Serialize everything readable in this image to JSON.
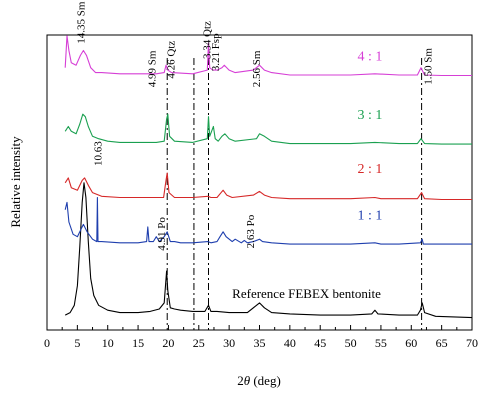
{
  "chart_data": {
    "type": "line",
    "xlabel": "2θ (deg)",
    "ylabel": "Relative intensity",
    "xlim": [
      0,
      70
    ],
    "xticks": [
      "0",
      "5",
      "10",
      "15",
      "20",
      "25",
      "30",
      "35",
      "40",
      "45",
      "50",
      "55",
      "60",
      "65",
      "70"
    ],
    "reference_lines_x": [
      19.8,
      24.2,
      26.6,
      61.7
    ],
    "series": [
      {
        "name": "Reference FEBEX bentonite",
        "color": "#000000",
        "offset": 0,
        "points": [
          [
            3.0,
            0.02
          ],
          [
            3.8,
            0.03
          ],
          [
            4.5,
            0.06
          ],
          [
            5.0,
            0.14
          ],
          [
            5.4,
            0.3
          ],
          [
            5.8,
            0.48
          ],
          [
            6.1,
            0.56
          ],
          [
            6.4,
            0.5
          ],
          [
            6.8,
            0.32
          ],
          [
            7.2,
            0.17
          ],
          [
            7.7,
            0.1
          ],
          [
            8.5,
            0.06
          ],
          [
            10,
            0.04
          ],
          [
            12,
            0.03
          ],
          [
            15,
            0.03
          ],
          [
            17,
            0.035
          ],
          [
            18.5,
            0.045
          ],
          [
            19.3,
            0.07
          ],
          [
            19.7,
            0.2
          ],
          [
            19.9,
            0.12
          ],
          [
            20.3,
            0.05
          ],
          [
            21,
            0.045
          ],
          [
            22,
            0.04
          ],
          [
            24,
            0.035
          ],
          [
            26,
            0.035
          ],
          [
            26.6,
            0.06
          ],
          [
            27,
            0.035
          ],
          [
            28,
            0.035
          ],
          [
            30,
            0.03
          ],
          [
            33,
            0.03
          ],
          [
            34.5,
            0.06
          ],
          [
            35,
            0.07
          ],
          [
            35.8,
            0.05
          ],
          [
            37,
            0.03
          ],
          [
            40,
            0.025
          ],
          [
            45,
            0.02
          ],
          [
            50,
            0.02
          ],
          [
            53.5,
            0.025
          ],
          [
            54,
            0.04
          ],
          [
            54.5,
            0.025
          ],
          [
            58,
            0.02
          ],
          [
            61,
            0.02
          ],
          [
            61.5,
            0.04
          ],
          [
            61.8,
            0.07
          ],
          [
            62.2,
            0.03
          ],
          [
            64,
            0.015
          ],
          [
            70,
            0.01
          ]
        ]
      },
      {
        "name": "1:1",
        "color": "#1f3fae",
        "offset": 0.3,
        "points": [
          [
            3.0,
            0.15
          ],
          [
            3.3,
            0.18
          ],
          [
            3.6,
            0.1
          ],
          [
            4.3,
            0.05
          ],
          [
            5.0,
            0.04
          ],
          [
            5.6,
            0.07
          ],
          [
            6.0,
            0.09
          ],
          [
            6.6,
            0.06
          ],
          [
            7.5,
            0.03
          ],
          [
            8.2,
            0.02
          ],
          [
            8.3,
            0.2
          ],
          [
            8.4,
            0.02
          ],
          [
            9,
            0.02
          ],
          [
            12,
            0.015
          ],
          [
            15,
            0.015
          ],
          [
            16.4,
            0.02
          ],
          [
            16.6,
            0.08
          ],
          [
            16.8,
            0.02
          ],
          [
            17.5,
            0.02
          ],
          [
            18,
            0.04
          ],
          [
            18.5,
            0.02
          ],
          [
            19.3,
            0.04
          ],
          [
            19.8,
            0.06
          ],
          [
            20.3,
            0.02
          ],
          [
            21,
            0.02
          ],
          [
            22,
            0.015
          ],
          [
            24,
            0.015
          ],
          [
            26.5,
            0.02
          ],
          [
            27,
            0.015
          ],
          [
            28,
            0.02
          ],
          [
            28.5,
            0.04
          ],
          [
            29,
            0.06
          ],
          [
            29.5,
            0.04
          ],
          [
            30.5,
            0.02
          ],
          [
            31,
            0.03
          ],
          [
            32,
            0.015
          ],
          [
            32.5,
            0.025
          ],
          [
            33,
            0.015
          ],
          [
            34,
            0.02
          ],
          [
            35,
            0.03
          ],
          [
            35.5,
            0.02
          ],
          [
            37,
            0.015
          ],
          [
            40,
            0.01
          ],
          [
            45,
            0.01
          ],
          [
            50,
            0.01
          ],
          [
            54,
            0.015
          ],
          [
            55,
            0.01
          ],
          [
            58,
            0.01
          ],
          [
            61.5,
            0.015
          ],
          [
            61.8,
            0.03
          ],
          [
            62,
            0.01
          ],
          [
            65,
            0.01
          ],
          [
            70,
            0.01
          ]
        ]
      },
      {
        "name": "2:1",
        "color": "#d62828",
        "offset": 0.48,
        "points": [
          [
            3.0,
            0.08
          ],
          [
            3.5,
            0.1
          ],
          [
            4,
            0.06
          ],
          [
            5,
            0.05
          ],
          [
            5.8,
            0.09
          ],
          [
            6.2,
            0.1
          ],
          [
            6.8,
            0.07
          ],
          [
            7.5,
            0.04
          ],
          [
            9,
            0.025
          ],
          [
            12,
            0.02
          ],
          [
            15,
            0.02
          ],
          [
            18,
            0.02
          ],
          [
            19.2,
            0.02
          ],
          [
            19.6,
            0.09
          ],
          [
            19.8,
            0.12
          ],
          [
            20.1,
            0.04
          ],
          [
            21,
            0.02
          ],
          [
            24,
            0.02
          ],
          [
            26.5,
            0.025
          ],
          [
            27,
            0.02
          ],
          [
            28,
            0.02
          ],
          [
            29,
            0.05
          ],
          [
            29.6,
            0.03
          ],
          [
            30.5,
            0.02
          ],
          [
            34,
            0.03
          ],
          [
            35,
            0.045
          ],
          [
            35.8,
            0.03
          ],
          [
            37,
            0.02
          ],
          [
            40,
            0.015
          ],
          [
            45,
            0.015
          ],
          [
            50,
            0.015
          ],
          [
            54,
            0.02
          ],
          [
            55,
            0.015
          ],
          [
            61,
            0.015
          ],
          [
            61.7,
            0.04
          ],
          [
            62.2,
            0.015
          ],
          [
            65,
            0.012
          ],
          [
            70,
            0.012
          ]
        ]
      },
      {
        "name": "3:1",
        "color": "#1aa050",
        "offset": 0.7,
        "points": [
          [
            3.0,
            0.07
          ],
          [
            3.5,
            0.09
          ],
          [
            4,
            0.07
          ],
          [
            4.8,
            0.06
          ],
          [
            5.4,
            0.1
          ],
          [
            5.9,
            0.14
          ],
          [
            6.3,
            0.13
          ],
          [
            6.8,
            0.09
          ],
          [
            7.5,
            0.05
          ],
          [
            8.5,
            0.04
          ],
          [
            10,
            0.03
          ],
          [
            12,
            0.025
          ],
          [
            15,
            0.025
          ],
          [
            18,
            0.025
          ],
          [
            19.3,
            0.03
          ],
          [
            19.7,
            0.12
          ],
          [
            19.9,
            0.14
          ],
          [
            20.2,
            0.05
          ],
          [
            21,
            0.03
          ],
          [
            24,
            0.025
          ],
          [
            26.4,
            0.04
          ],
          [
            26.6,
            0.13
          ],
          [
            26.8,
            0.05
          ],
          [
            27.4,
            0.09
          ],
          [
            27.7,
            0.04
          ],
          [
            28.2,
            0.03
          ],
          [
            28.8,
            0.05
          ],
          [
            29.3,
            0.06
          ],
          [
            30,
            0.04
          ],
          [
            31,
            0.03
          ],
          [
            34.5,
            0.04
          ],
          [
            35,
            0.06
          ],
          [
            35.8,
            0.05
          ],
          [
            37,
            0.03
          ],
          [
            40,
            0.02
          ],
          [
            45,
            0.02
          ],
          [
            50,
            0.02
          ],
          [
            54,
            0.025
          ],
          [
            58,
            0.02
          ],
          [
            61,
            0.02
          ],
          [
            61.6,
            0.04
          ],
          [
            62.2,
            0.02
          ],
          [
            65,
            0.018
          ],
          [
            70,
            0.018
          ]
        ]
      },
      {
        "name": "4:1",
        "color": "#d63fd6",
        "offset": 0.98,
        "points": [
          [
            3.0,
            0.05
          ],
          [
            3.3,
            0.18
          ],
          [
            3.6,
            0.12
          ],
          [
            4.0,
            0.07
          ],
          [
            4.8,
            0.06
          ],
          [
            5.5,
            0.1
          ],
          [
            6.0,
            0.12
          ],
          [
            6.5,
            0.1
          ],
          [
            7.2,
            0.05
          ],
          [
            8,
            0.03
          ],
          [
            9,
            0.03
          ],
          [
            12,
            0.025
          ],
          [
            15,
            0.025
          ],
          [
            18,
            0.025
          ],
          [
            19.3,
            0.03
          ],
          [
            19.6,
            0.06
          ],
          [
            19.9,
            0.04
          ],
          [
            20.5,
            0.03
          ],
          [
            24,
            0.025
          ],
          [
            26.4,
            0.04
          ],
          [
            26.6,
            0.15
          ],
          [
            26.8,
            0.05
          ],
          [
            27.3,
            0.04
          ],
          [
            28,
            0.04
          ],
          [
            28.8,
            0.05
          ],
          [
            29.2,
            0.06
          ],
          [
            30,
            0.04
          ],
          [
            31,
            0.03
          ],
          [
            34,
            0.04
          ],
          [
            35,
            0.06
          ],
          [
            35.8,
            0.04
          ],
          [
            37,
            0.03
          ],
          [
            40,
            0.02
          ],
          [
            45,
            0.02
          ],
          [
            50,
            0.02
          ],
          [
            54,
            0.025
          ],
          [
            58,
            0.02
          ],
          [
            61,
            0.02
          ],
          [
            61.6,
            0.05
          ],
          [
            62.2,
            0.02
          ],
          [
            65,
            0.018
          ],
          [
            70,
            0.018
          ]
        ]
      }
    ],
    "annotations": [
      {
        "text": "14.35 Sm",
        "x": 6.2,
        "y": 1.3,
        "rotate": -90
      },
      {
        "text": "4.99 Sm",
        "x": 17.9,
        "y": 1.1,
        "rotate": -90
      },
      {
        "text": "4.26 Qtz",
        "x": 21.0,
        "y": 1.14,
        "rotate": -90
      },
      {
        "text": "3.34 Qtz",
        "x": 26.9,
        "y": 1.22,
        "rotate": -90
      },
      {
        "text": "3.21 Fsp",
        "x": 28.3,
        "y": 1.17,
        "rotate": -90
      },
      {
        "text": "2.56 Sm",
        "x": 35.1,
        "y": 1.1,
        "rotate": -90
      },
      {
        "text": "1.50 Sm",
        "x": 63.3,
        "y": 1.11,
        "rotate": -90
      },
      {
        "text": "10.63",
        "x": 9.0,
        "y": 0.73,
        "rotate": -90
      },
      {
        "text": "4.91 Po",
        "x": 19.4,
        "y": 0.42,
        "rotate": -90
      },
      {
        "text": "2.63 Po",
        "x": 34.1,
        "y": 0.43,
        "rotate": -90
      }
    ],
    "series_labels": [
      {
        "text": "4 : 1",
        "x": 53.2,
        "y": 1.06,
        "color": "#d63fd6"
      },
      {
        "text": "3 : 1",
        "x": 53.2,
        "y": 0.82,
        "color": "#1aa050"
      },
      {
        "text": "2 : 1",
        "x": 53.2,
        "y": 0.6,
        "color": "#d62828"
      },
      {
        "text": "1 : 1",
        "x": 53.2,
        "y": 0.41,
        "color": "#1f3fae"
      },
      {
        "text": "Reference FEBEX bentonite",
        "x": 30.5,
        "y": 0.09,
        "color": "#000000"
      }
    ]
  }
}
